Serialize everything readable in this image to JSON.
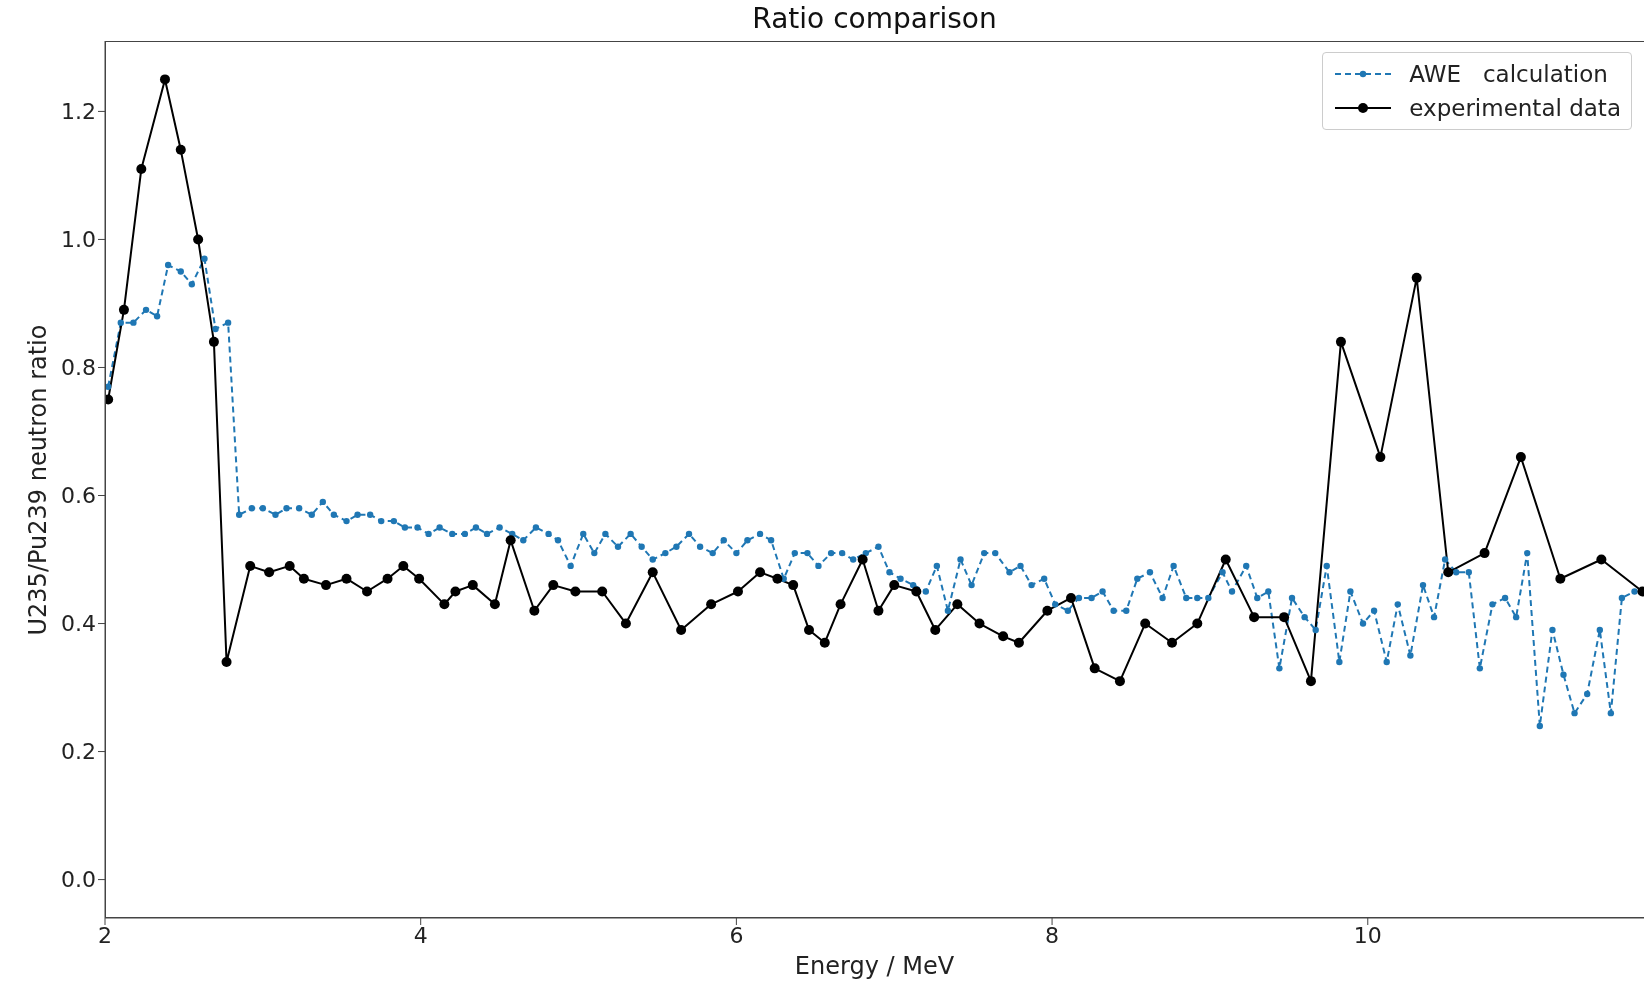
{
  "chart_data": {
    "type": "line",
    "title": "Ratio comparison",
    "xlabel": "Energy / MeV",
    "ylabel": "U235/Pu239 neutron ratio",
    "xlim": [
      2,
      11.75
    ],
    "xticks": [
      2,
      4,
      6,
      8,
      10
    ],
    "ylim": [
      -0.06,
      1.31
    ],
    "yticks": [
      {
        "value": 0,
        "label": "0.0"
      },
      {
        "value": 0.2,
        "label": "0.2"
      },
      {
        "value": 0.4,
        "label": "0.4"
      },
      {
        "value": 0.6,
        "label": "0.6"
      },
      {
        "value": 0.8,
        "label": "0.8"
      },
      {
        "value": 1.0,
        "label": "1.0"
      },
      {
        "value": 1.2,
        "label": "1.2"
      }
    ],
    "grid": false,
    "legend": "top right",
    "series": [
      {
        "name": "AWE   calculation",
        "color": "#1f77b4",
        "marker": "circle",
        "line_style": "dashed",
        "x": [
          2.02,
          2.1,
          2.18,
          2.26,
          2.33,
          2.4,
          2.48,
          2.55,
          2.63,
          2.7,
          2.78,
          2.85,
          2.93,
          3.0,
          3.08,
          3.15,
          3.23,
          3.31,
          3.38,
          3.45,
          3.53,
          3.6,
          3.68,
          3.75,
          3.83,
          3.9,
          3.98,
          4.05,
          4.12,
          4.2,
          4.28,
          4.35,
          4.42,
          4.5,
          4.58,
          4.65,
          4.73,
          4.81,
          4.87,
          4.95,
          5.03,
          5.1,
          5.17,
          5.25,
          5.33,
          5.4,
          5.47,
          5.55,
          5.62,
          5.7,
          5.77,
          5.85,
          5.92,
          6.0,
          6.07,
          6.15,
          6.22,
          6.3,
          6.37,
          6.45,
          6.52,
          6.6,
          6.67,
          6.74,
          6.82,
          6.9,
          6.97,
          7.04,
          7.12,
          7.2,
          7.27,
          7.34,
          7.42,
          7.49,
          7.57,
          7.64,
          7.73,
          7.8,
          7.87,
          7.95,
          8.02,
          8.1,
          8.17,
          8.25,
          8.32,
          8.39,
          8.47,
          8.54,
          8.62,
          8.7,
          8.77,
          8.85,
          8.92,
          8.99,
          9.08,
          9.14,
          9.23,
          9.3,
          9.37,
          9.44,
          9.52,
          9.6,
          9.67,
          9.74,
          9.82,
          9.89,
          9.97,
          10.04,
          10.12,
          10.19,
          10.27,
          10.35,
          10.42,
          10.49,
          10.56,
          10.64,
          10.71,
          10.79,
          10.87,
          10.94,
          11.01,
          11.09,
          11.17,
          11.24,
          11.31,
          11.39,
          11.47,
          11.54,
          11.61,
          11.69
        ],
        "values": [
          0.77,
          0.87,
          0.87,
          0.89,
          0.88,
          0.96,
          0.95,
          0.93,
          0.97,
          0.86,
          0.87,
          0.57,
          0.58,
          0.58,
          0.57,
          0.58,
          0.58,
          0.57,
          0.59,
          0.57,
          0.56,
          0.57,
          0.57,
          0.56,
          0.56,
          0.55,
          0.55,
          0.54,
          0.55,
          0.54,
          0.54,
          0.55,
          0.54,
          0.55,
          0.54,
          0.53,
          0.55,
          0.54,
          0.53,
          0.49,
          0.54,
          0.51,
          0.54,
          0.52,
          0.54,
          0.52,
          0.5,
          0.51,
          0.52,
          0.54,
          0.52,
          0.51,
          0.53,
          0.51,
          0.53,
          0.54,
          0.53,
          0.47,
          0.51,
          0.51,
          0.49,
          0.51,
          0.51,
          0.5,
          0.51,
          0.52,
          0.48,
          0.47,
          0.46,
          0.45,
          0.49,
          0.42,
          0.5,
          0.46,
          0.51,
          0.51,
          0.48,
          0.49,
          0.46,
          0.47,
          0.43,
          0.42,
          0.44,
          0.44,
          0.45,
          0.42,
          0.42,
          0.47,
          0.48,
          0.44,
          0.49,
          0.44,
          0.44,
          0.44,
          0.48,
          0.45,
          0.49,
          0.44,
          0.45,
          0.33,
          0.44,
          0.41,
          0.39,
          0.49,
          0.34,
          0.45,
          0.4,
          0.42,
          0.34,
          0.43,
          0.35,
          0.46,
          0.41,
          0.5,
          0.48,
          0.48,
          0.33,
          0.43,
          0.44,
          0.41,
          0.51,
          0.24,
          0.39,
          0.32,
          0.26,
          0.29,
          0.39,
          0.26,
          0.44,
          0.45
        ]
      },
      {
        "name": "experimental data",
        "color": "#000000",
        "marker": "circle",
        "line_style": "solid",
        "x": [
          2.02,
          2.12,
          2.23,
          2.38,
          2.48,
          2.59,
          2.69,
          2.77,
          2.92,
          3.04,
          3.17,
          3.26,
          3.4,
          3.53,
          3.66,
          3.79,
          3.89,
          3.99,
          4.15,
          4.22,
          4.33,
          4.47,
          4.57,
          4.72,
          4.84,
          4.98,
          5.15,
          5.3,
          5.47,
          5.65,
          5.84,
          6.01,
          6.15,
          6.26,
          6.36,
          6.46,
          6.56,
          6.66,
          6.8,
          6.9,
          7.0,
          7.14,
          7.26,
          7.4,
          7.54,
          7.69,
          7.79,
          7.97,
          8.12,
          8.27,
          8.43,
          8.59,
          8.76,
          8.92,
          9.1,
          9.28,
          9.47,
          9.64,
          9.83,
          10.08,
          10.31,
          10.51,
          10.74,
          10.97,
          11.22,
          11.48,
          11.74
        ],
        "values": [
          0.75,
          0.89,
          1.11,
          1.25,
          1.14,
          1.0,
          0.84,
          0.34,
          0.49,
          0.48,
          0.49,
          0.47,
          0.46,
          0.47,
          0.45,
          0.47,
          0.49,
          0.47,
          0.43,
          0.45,
          0.46,
          0.43,
          0.53,
          0.42,
          0.46,
          0.45,
          0.45,
          0.4,
          0.48,
          0.39,
          0.43,
          0.45,
          0.48,
          0.47,
          0.46,
          0.39,
          0.37,
          0.43,
          0.5,
          0.42,
          0.46,
          0.45,
          0.39,
          0.43,
          0.4,
          0.38,
          0.37,
          0.42,
          0.44,
          0.33,
          0.31,
          0.4,
          0.37,
          0.4,
          0.5,
          0.41,
          0.41,
          0.31,
          0.84,
          0.66,
          0.94,
          0.48,
          0.51,
          0.66,
          0.47,
          0.5,
          0.45
        ]
      }
    ]
  }
}
